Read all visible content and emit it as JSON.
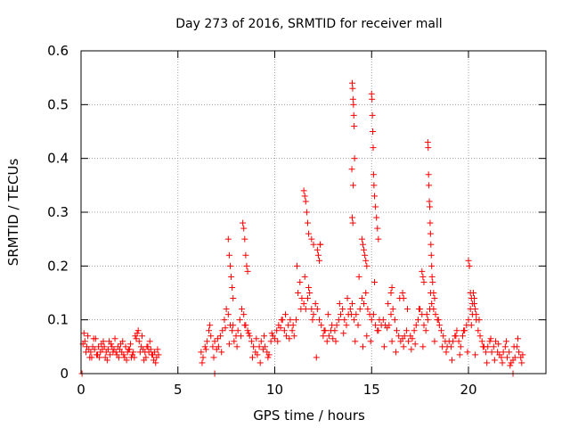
{
  "chart_data": {
    "type": "scatter",
    "title": "Day 273 of 2016, SRMTID for receiver mall",
    "xlabel": "GPS time / hours",
    "ylabel": "SRMTID / TECUs",
    "xlim": [
      0,
      24
    ],
    "ylim": [
      0,
      0.6
    ],
    "xticks": [
      0,
      5,
      10,
      15,
      20
    ],
    "xtick_labels": [
      "0",
      "5",
      "10",
      "15",
      "20"
    ],
    "yticks": [
      0,
      0.1,
      0.2,
      0.3,
      0.4,
      0.5,
      0.6
    ],
    "ytick_labels": [
      "0",
      "0.1",
      "0.2",
      "0.3",
      "0.4",
      "0.5",
      "0.6"
    ],
    "grid": true,
    "marker": "+",
    "color": "#ff0000",
    "series": [
      {
        "name": "SRMTID",
        "x": [
          0.1,
          0.2,
          0.3,
          0.4,
          0.5,
          0.6,
          0.7,
          0.8,
          0.9,
          1.0,
          1.1,
          1.2,
          1.3,
          1.4,
          1.5,
          1.6,
          1.7,
          1.8,
          1.9,
          2.0,
          2.1,
          2.2,
          2.3,
          2.4,
          2.5,
          2.6,
          2.7,
          2.8,
          2.9,
          3.0,
          3.1,
          3.2,
          3.3,
          3.4,
          3.5,
          3.6,
          3.7,
          3.8,
          3.9,
          4.0,
          0.15,
          0.35,
          0.55,
          0.75,
          0.95,
          1.15,
          1.35,
          1.55,
          1.75,
          1.95,
          2.15,
          2.35,
          2.55,
          2.75,
          2.95,
          3.15,
          3.35,
          3.55,
          3.75,
          3.95,
          0.25,
          0.45,
          0.65,
          0.85,
          1.05,
          1.25,
          1.45,
          1.65,
          1.85,
          2.05,
          2.25,
          2.45,
          2.65,
          2.85,
          3.05,
          3.25,
          3.45,
          3.65,
          3.85,
          6.2,
          6.3,
          6.4,
          6.5,
          6.6,
          6.7,
          6.8,
          6.9,
          7.0,
          7.1,
          7.2,
          7.3,
          7.4,
          7.5,
          7.6,
          7.7,
          7.8,
          7.9,
          8.0,
          8.1,
          8.2,
          8.3,
          8.4,
          8.5,
          8.6,
          8.7,
          8.8,
          8.9,
          9.0,
          9.1,
          9.2,
          9.3,
          9.4,
          9.5,
          9.6,
          9.7,
          9.8,
          9.9,
          10.0,
          6.25,
          6.45,
          6.65,
          6.85,
          7.05,
          7.25,
          7.45,
          7.65,
          7.85,
          8.05,
          8.25,
          8.45,
          8.65,
          8.85,
          9.05,
          9.25,
          9.45,
          9.65,
          9.85,
          7.6,
          7.65,
          7.7,
          7.75,
          7.8,
          7.85,
          8.35,
          8.4,
          8.45,
          8.5,
          8.55,
          8.6,
          10.1,
          10.2,
          10.3,
          10.4,
          10.5,
          10.6,
          10.7,
          10.8,
          10.9,
          11.0,
          11.1,
          11.2,
          11.3,
          11.4,
          11.5,
          11.6,
          11.7,
          11.8,
          11.9,
          12.0,
          12.1,
          12.2,
          12.3,
          12.4,
          12.5,
          12.6,
          12.7,
          12.8,
          12.9,
          13.0,
          10.15,
          10.35,
          10.55,
          10.75,
          10.95,
          11.15,
          11.35,
          11.55,
          11.75,
          11.95,
          12.15,
          12.35,
          12.55,
          12.75,
          12.95,
          11.5,
          11.55,
          11.6,
          11.65,
          11.7,
          11.75,
          12.2,
          12.25,
          12.3,
          12.35,
          11.9,
          12.0,
          13.1,
          13.2,
          13.3,
          13.4,
          13.5,
          13.6,
          13.7,
          13.8,
          13.9,
          14.0,
          14.1,
          14.2,
          14.3,
          14.4,
          14.5,
          14.6,
          14.7,
          14.8,
          14.9,
          15.0,
          15.1,
          15.2,
          15.3,
          15.4,
          15.5,
          13.15,
          13.35,
          13.55,
          13.75,
          13.95,
          14.15,
          14.35,
          14.55,
          14.75,
          14.95,
          15.15,
          15.35,
          14.0,
          14.02,
          14.04,
          14.06,
          14.08,
          14.1,
          14.12,
          13.98,
          14.05,
          14.0,
          14.03,
          14.5,
          14.55,
          14.6,
          14.65,
          14.7,
          14.75,
          15.0,
          15.02,
          15.04,
          15.06,
          15.08,
          15.1,
          15.12,
          15.15,
          15.2,
          15.25,
          15.3,
          15.35,
          15.6,
          15.7,
          15.8,
          15.9,
          16.0,
          16.1,
          16.2,
          16.3,
          16.4,
          16.5,
          16.6,
          16.7,
          16.8,
          16.9,
          17.0,
          17.1,
          17.2,
          17.3,
          17.4,
          17.5,
          17.6,
          17.7,
          17.8,
          17.9,
          18.0,
          18.1,
          18.2,
          18.3,
          18.4,
          18.5,
          18.6,
          18.7,
          18.8,
          18.9,
          19.0,
          15.65,
          15.85,
          16.05,
          16.25,
          16.45,
          16.65,
          16.85,
          17.05,
          17.25,
          17.45,
          17.65,
          17.85,
          18.05,
          18.25,
          18.45,
          18.65,
          18.85,
          17.6,
          17.65,
          17.7,
          16.0,
          16.05,
          16.6,
          16.65,
          17.9,
          17.92,
          17.94,
          17.96,
          17.98,
          18.0,
          18.02,
          18.04,
          18.06,
          18.08,
          18.1,
          18.12,
          18.15,
          18.2,
          18.25,
          19.1,
          19.2,
          19.3,
          19.4,
          19.5,
          19.6,
          19.7,
          19.8,
          19.9,
          20.0,
          20.1,
          20.2,
          20.3,
          20.4,
          20.5,
          20.6,
          20.7,
          20.8,
          20.9,
          21.0,
          21.1,
          21.2,
          21.3,
          21.4,
          21.5,
          21.6,
          21.7,
          21.8,
          21.9,
          22.0,
          22.1,
          22.2,
          22.3,
          22.4,
          22.5,
          22.6,
          22.7,
          22.8,
          19.15,
          19.35,
          19.55,
          19.75,
          19.95,
          20.15,
          20.35,
          20.55,
          20.75,
          20.95,
          21.15,
          21.35,
          21.55,
          21.75,
          21.95,
          22.15,
          22.35,
          22.55,
          22.75,
          20.0,
          20.05,
          20.1,
          20.15,
          20.2,
          20.25,
          20.3,
          20.35,
          20.4,
          0.05,
          6.9,
          22.3
        ],
        "y": [
          0.055,
          0.06,
          0.05,
          0.045,
          0.04,
          0.05,
          0.045,
          0.035,
          0.05,
          0.04,
          0.045,
          0.05,
          0.04,
          0.045,
          0.035,
          0.05,
          0.045,
          0.04,
          0.05,
          0.045,
          0.04,
          0.035,
          0.05,
          0.04,
          0.045,
          0.03,
          0.04,
          0.07,
          0.075,
          0.06,
          0.05,
          0.045,
          0.04,
          0.05,
          0.04,
          0.045,
          0.035,
          0.04,
          0.03,
          0.035,
          0.075,
          0.07,
          0.03,
          0.065,
          0.03,
          0.06,
          0.025,
          0.055,
          0.065,
          0.03,
          0.06,
          0.025,
          0.055,
          0.03,
          0.08,
          0.07,
          0.03,
          0.06,
          0.025,
          0.045,
          0.04,
          0.03,
          0.065,
          0.035,
          0.055,
          0.03,
          0.06,
          0.04,
          0.035,
          0.055,
          0.03,
          0.045,
          0.035,
          0.065,
          0.04,
          0.025,
          0.05,
          0.035,
          0.02,
          0.04,
          0.03,
          0.05,
          0.06,
          0.08,
          0.07,
          0.05,
          0.06,
          0.045,
          0.05,
          0.07,
          0.08,
          0.1,
          0.12,
          0.11,
          0.09,
          0.08,
          0.06,
          0.07,
          0.08,
          0.1,
          0.12,
          0.11,
          0.09,
          0.08,
          0.07,
          0.06,
          0.05,
          0.04,
          0.035,
          0.05,
          0.06,
          0.045,
          0.05,
          0.04,
          0.035,
          0.06,
          0.07,
          0.065,
          0.02,
          0.045,
          0.09,
          0.03,
          0.065,
          0.04,
          0.085,
          0.055,
          0.09,
          0.05,
          0.07,
          0.09,
          0.075,
          0.03,
          0.065,
          0.02,
          0.07,
          0.03,
          0.075,
          0.25,
          0.22,
          0.2,
          0.18,
          0.16,
          0.14,
          0.28,
          0.27,
          0.25,
          0.22,
          0.2,
          0.19,
          0.08,
          0.09,
          0.085,
          0.1,
          0.08,
          0.07,
          0.09,
          0.1,
          0.08,
          0.07,
          0.1,
          0.15,
          0.17,
          0.14,
          0.13,
          0.12,
          0.14,
          0.15,
          0.12,
          0.11,
          0.13,
          0.12,
          0.1,
          0.09,
          0.07,
          0.08,
          0.06,
          0.07,
          0.08,
          0.065,
          0.06,
          0.1,
          0.11,
          0.065,
          0.09,
          0.2,
          0.12,
          0.18,
          0.16,
          0.1,
          0.03,
          0.24,
          0.08,
          0.11,
          0.09,
          0.34,
          0.33,
          0.32,
          0.3,
          0.28,
          0.26,
          0.23,
          0.22,
          0.21,
          0.24,
          0.25,
          0.24,
          0.08,
          0.09,
          0.1,
          0.11,
          0.12,
          0.1,
          0.09,
          0.11,
          0.12,
          0.13,
          0.1,
          0.11,
          0.09,
          0.12,
          0.14,
          0.13,
          0.15,
          0.12,
          0.11,
          0.1,
          0.11,
          0.09,
          0.08,
          0.1,
          0.09,
          0.06,
          0.13,
          0.075,
          0.14,
          0.11,
          0.06,
          0.18,
          0.05,
          0.07,
          0.06,
          0.17,
          0.08,
          0.54,
          0.53,
          0.51,
          0.5,
          0.48,
          0.46,
          0.4,
          0.38,
          0.35,
          0.29,
          0.28,
          0.25,
          0.24,
          0.23,
          0.22,
          0.21,
          0.2,
          0.52,
          0.51,
          0.48,
          0.45,
          0.42,
          0.37,
          0.35,
          0.33,
          0.31,
          0.29,
          0.27,
          0.25,
          0.1,
          0.09,
          0.085,
          0.09,
          0.11,
          0.12,
          0.1,
          0.08,
          0.07,
          0.06,
          0.065,
          0.07,
          0.08,
          0.06,
          0.07,
          0.065,
          0.08,
          0.09,
          0.1,
          0.12,
          0.11,
          0.09,
          0.08,
          0.1,
          0.12,
          0.13,
          0.12,
          0.11,
          0.1,
          0.09,
          0.08,
          0.07,
          0.06,
          0.05,
          0.06,
          0.05,
          0.13,
          0.06,
          0.04,
          0.14,
          0.05,
          0.12,
          0.045,
          0.055,
          0.12,
          0.05,
          0.11,
          0.15,
          0.06,
          0.1,
          0.05,
          0.04,
          0.19,
          0.18,
          0.17,
          0.15,
          0.16,
          0.15,
          0.14,
          0.43,
          0.42,
          0.37,
          0.35,
          0.32,
          0.31,
          0.28,
          0.26,
          0.24,
          0.22,
          0.2,
          0.18,
          0.17,
          0.15,
          0.14,
          0.05,
          0.06,
          0.07,
          0.08,
          0.06,
          0.05,
          0.07,
          0.08,
          0.09,
          0.1,
          0.12,
          0.11,
          0.13,
          0.1,
          0.08,
          0.07,
          0.06,
          0.05,
          0.04,
          0.05,
          0.06,
          0.04,
          0.05,
          0.06,
          0.04,
          0.035,
          0.03,
          0.04,
          0.05,
          0.03,
          0.04,
          0.02,
          0.025,
          0.03,
          0.05,
          0.04,
          0.03,
          0.035,
          0.025,
          0.07,
          0.035,
          0.08,
          0.04,
          0.09,
          0.035,
          0.1,
          0.05,
          0.02,
          0.065,
          0.025,
          0.055,
          0.02,
          0.06,
          0.015,
          0.05,
          0.065,
          0.02,
          0.21,
          0.2,
          0.15,
          0.14,
          0.13,
          0.15,
          0.14,
          0.12,
          0.11,
          0,
          0,
          0
        ]
      }
    ]
  }
}
